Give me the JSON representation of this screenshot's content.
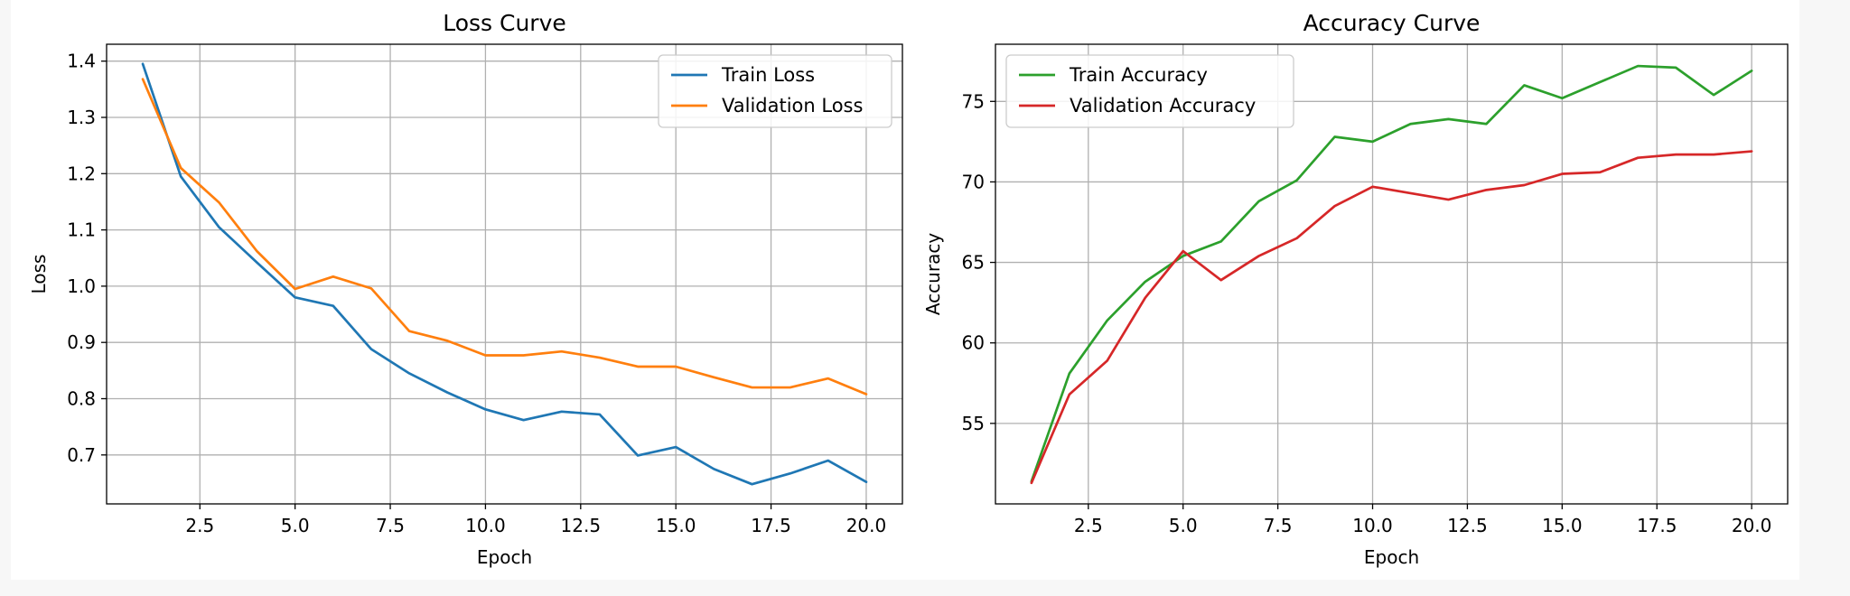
{
  "chart_data": [
    {
      "type": "line",
      "title": "Loss Curve",
      "xlabel": "Epoch",
      "ylabel": "Loss",
      "xlim": [
        0.05,
        20.95
      ],
      "ylim": [
        0.613,
        1.43
      ],
      "xticks": [
        2.5,
        5.0,
        7.5,
        10.0,
        12.5,
        15.0,
        17.5,
        20.0
      ],
      "yticks": [
        0.7,
        0.8,
        0.9,
        1.0,
        1.1,
        1.2,
        1.3,
        1.4
      ],
      "legend_position": "upper right",
      "grid": true,
      "x": [
        1,
        2,
        3,
        4,
        5,
        6,
        7,
        8,
        9,
        10,
        11,
        12,
        13,
        14,
        15,
        16,
        17,
        18,
        19,
        20
      ],
      "series": [
        {
          "name": "Train Loss",
          "color": "#1f77b4",
          "values": [
            1.395,
            1.195,
            1.105,
            1.042,
            0.98,
            0.965,
            0.888,
            0.845,
            0.811,
            0.781,
            0.762,
            0.777,
            0.772,
            0.699,
            0.714,
            0.675,
            0.648,
            0.667,
            0.69,
            0.652
          ]
        },
        {
          "name": "Validation Loss",
          "color": "#ff7f0e",
          "values": [
            1.368,
            1.21,
            1.149,
            1.062,
            0.995,
            1.017,
            0.996,
            0.92,
            0.903,
            0.877,
            0.877,
            0.884,
            0.873,
            0.857,
            0.857,
            0.838,
            0.82,
            0.82,
            0.836,
            0.808
          ]
        }
      ]
    },
    {
      "type": "line",
      "title": "Accuracy Curve",
      "xlabel": "Epoch",
      "ylabel": "Accuracy",
      "xlim": [
        0.05,
        20.95
      ],
      "ylim": [
        50.0,
        78.55
      ],
      "xticks": [
        2.5,
        5.0,
        7.5,
        10.0,
        12.5,
        15.0,
        17.5,
        20.0
      ],
      "yticks": [
        55,
        60,
        65,
        70,
        75
      ],
      "legend_position": "upper left",
      "grid": true,
      "x": [
        1,
        2,
        3,
        4,
        5,
        6,
        7,
        8,
        9,
        10,
        11,
        12,
        13,
        14,
        15,
        16,
        17,
        18,
        19,
        20
      ],
      "series": [
        {
          "name": "Train Accuracy",
          "color": "#2ca02c",
          "values": [
            51.4,
            58.1,
            61.4,
            63.8,
            65.4,
            66.3,
            68.8,
            70.1,
            72.8,
            72.5,
            73.6,
            73.9,
            73.6,
            76.0,
            75.2,
            76.2,
            77.2,
            77.1,
            75.4,
            76.9
          ]
        },
        {
          "name": "Validation Accuracy",
          "color": "#d62728",
          "values": [
            51.3,
            56.8,
            58.9,
            62.8,
            65.7,
            63.9,
            65.4,
            66.5,
            68.5,
            69.7,
            69.3,
            68.9,
            69.5,
            69.8,
            70.5,
            70.6,
            71.5,
            71.7,
            71.7,
            71.9
          ]
        }
      ]
    }
  ]
}
